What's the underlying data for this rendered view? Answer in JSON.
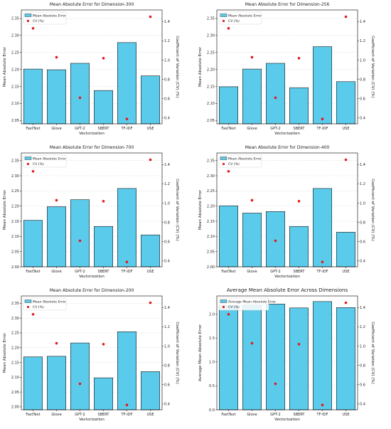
{
  "colors": {
    "bar_fill": "#5bcbeb",
    "bar_edge": "#1a1a1a",
    "cv_marker": "#e41a1c",
    "grid": "#d9d9d9",
    "axis": "#000000"
  },
  "chart_data": [
    {
      "type": "bar",
      "title": "Mean Absolute Error for Dimension-300",
      "xlabel": "Vectorization",
      "ylabel": "Mean Absolute Error",
      "y2label": "Coefficient of Variation (CV) (%)",
      "categories": [
        "FastText",
        "Glove",
        "GPT-2",
        "SBERT",
        "TF-IDF",
        "USE"
      ],
      "series": [
        {
          "name": "Mean Absolute Error",
          "axis": "left",
          "values": [
            2.201,
            2.199,
            2.218,
            2.138,
            2.279,
            2.181
          ]
        },
        {
          "name": "CV (%)",
          "axis": "right",
          "marker": "point",
          "values": [
            1.33,
            1.03,
            0.61,
            1.02,
            0.39,
            1.45
          ]
        }
      ],
      "ylim": [
        2.04,
        2.375
      ],
      "y2lim": [
        0.34,
        1.52
      ],
      "yticks": [
        "2.05",
        "2.10",
        "2.15",
        "2.20",
        "2.25",
        "2.30",
        "2.35"
      ],
      "y2ticks": [
        "0.4",
        "0.6",
        "0.8",
        "1.0",
        "1.2",
        "1.4"
      ],
      "legend": "top-left",
      "grid": true
    },
    {
      "type": "bar",
      "title": "Mean Absolute Error for Dimension-256",
      "xlabel": "Vectorization",
      "ylabel": "Mean Absolute Error",
      "y2label": "Coefficient of Variation (CV) (%)",
      "categories": [
        "FastText",
        "Glove",
        "GPT-2",
        "SBERT",
        "TF-IDF",
        "USE"
      ],
      "series": [
        {
          "name": "Mean Absolute Error",
          "axis": "left",
          "values": [
            2.149,
            2.201,
            2.218,
            2.146,
            2.267,
            2.164
          ]
        },
        {
          "name": "CV (%)",
          "axis": "right",
          "marker": "point",
          "values": [
            1.33,
            1.03,
            0.61,
            1.02,
            0.39,
            1.45
          ]
        }
      ],
      "ylim": [
        2.04,
        2.375
      ],
      "y2lim": [
        0.34,
        1.52
      ],
      "yticks": [
        "2.05",
        "2.10",
        "2.15",
        "2.20",
        "2.25",
        "2.30",
        "2.35"
      ],
      "y2ticks": [
        "0.4",
        "0.6",
        "0.8",
        "1.0",
        "1.2",
        "1.4"
      ],
      "legend": "top-left",
      "grid": true
    },
    {
      "type": "bar",
      "title": "Mean Absolute Error for Dimension-700",
      "xlabel": "Vectorization",
      "ylabel": "Mean Absolute Error",
      "y2label": "Coefficient of Variation (CV) (%)",
      "categories": [
        "FastText",
        "Glove",
        "GPT-2",
        "SBERT",
        "TF-IDF",
        "USE"
      ],
      "series": [
        {
          "name": "Mean Absolute Error",
          "axis": "left",
          "values": [
            2.153,
            2.198,
            2.221,
            2.133,
            2.258,
            2.105
          ]
        },
        {
          "name": "CV (%)",
          "axis": "right",
          "marker": "point",
          "values": [
            1.33,
            1.03,
            0.61,
            1.02,
            0.39,
            1.45
          ]
        }
      ],
      "ylim": [
        2.0,
        2.375
      ],
      "y2lim": [
        0.34,
        1.52
      ],
      "yticks": [
        "2.00",
        "2.05",
        "2.10",
        "2.15",
        "2.20",
        "2.25",
        "2.30",
        "2.35"
      ],
      "y2ticks": [
        "0.4",
        "0.6",
        "0.8",
        "1.0",
        "1.2",
        "1.4"
      ],
      "legend": "top-left",
      "grid": true
    },
    {
      "type": "bar",
      "title": "Mean Absolute Error for Dimension-400",
      "xlabel": "Vectorization",
      "ylabel": "Mean Absolute Error",
      "y2label": "Coefficient of Variation (CV) (%)",
      "categories": [
        "FastText",
        "Glove",
        "GPT-2",
        "SBERT",
        "TF-IDF",
        "USE"
      ],
      "series": [
        {
          "name": "Mean Absolute Error",
          "axis": "left",
          "values": [
            2.201,
            2.177,
            2.182,
            2.133,
            2.258,
            2.114
          ]
        },
        {
          "name": "CV (%)",
          "axis": "right",
          "marker": "point",
          "values": [
            1.33,
            1.03,
            0.61,
            1.02,
            0.39,
            1.45
          ]
        }
      ],
      "ylim": [
        2.0,
        2.375
      ],
      "y2lim": [
        0.34,
        1.52
      ],
      "yticks": [
        "2.00",
        "2.05",
        "2.10",
        "2.15",
        "2.20",
        "2.25",
        "2.30",
        "2.35"
      ],
      "y2ticks": [
        "0.4",
        "0.6",
        "0.8",
        "1.0",
        "1.2",
        "1.4"
      ],
      "legend": "top-left",
      "grid": true
    },
    {
      "type": "bar",
      "title": "Mean Absolute Error for Dimension-200",
      "xlabel": "Vectorization",
      "ylabel": "Mean Absolute Error",
      "y2label": "Coefficient of Variation (CV) (%)",
      "categories": [
        "FastText",
        "Glove",
        "GPT-2",
        "SBERT",
        "TF-IDF",
        "USE"
      ],
      "series": [
        {
          "name": "Mean Absolute Error",
          "axis": "left",
          "values": [
            2.169,
            2.171,
            2.216,
            2.098,
            2.254,
            2.119
          ]
        },
        {
          "name": "CV (%)",
          "axis": "right",
          "marker": "point",
          "values": [
            1.33,
            1.03,
            0.61,
            1.02,
            0.39,
            1.45
          ]
        }
      ],
      "ylim": [
        1.99,
        2.375
      ],
      "y2lim": [
        0.34,
        1.52
      ],
      "yticks": [
        "2.00",
        "2.05",
        "2.10",
        "2.15",
        "2.20",
        "2.25",
        "2.30",
        "2.35"
      ],
      "y2ticks": [
        "0.4",
        "0.6",
        "0.8",
        "1.0",
        "1.2",
        "1.4"
      ],
      "legend": "top-left",
      "grid": true
    },
    {
      "type": "bar",
      "title": "Average Mean Absolute Error Across Dimensions",
      "xlabel": "Vectorization",
      "ylabel": "Average Mean Absolute Error",
      "y2label": "Coefficient of Variation (CV) (%)",
      "categories": [
        "FastText",
        "Glove",
        "GPT-2",
        "SBERT",
        "TF-IDF",
        "USE"
      ],
      "series": [
        {
          "name": "Average Mean Absolute Error",
          "axis": "left",
          "values": [
            2.175,
            2.189,
            2.211,
            2.13,
            2.263,
            2.137
          ]
        },
        {
          "name": "CV (%)",
          "axis": "right",
          "marker": "point",
          "values": [
            1.33,
            1.03,
            0.61,
            1.02,
            0.39,
            1.45
          ]
        }
      ],
      "ylim": [
        0,
        2.38
      ],
      "y2lim": [
        0.34,
        1.52
      ],
      "yticks": [
        "0.0",
        "0.5",
        "1.0",
        "1.5",
        "2.0"
      ],
      "y2ticks": [
        "0.4",
        "0.6",
        "0.8",
        "1.0",
        "1.2",
        "1.4"
      ],
      "legend": "top-left",
      "grid": true
    }
  ]
}
